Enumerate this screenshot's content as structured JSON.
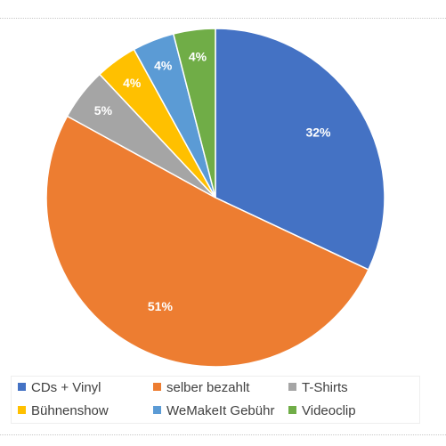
{
  "chart_data": {
    "type": "pie",
    "slices": [
      {
        "label": "CDs + Vinyl",
        "value": 32,
        "data_label": "32%",
        "color": "#4472C4"
      },
      {
        "label": "selber bezahlt",
        "value": 51,
        "data_label": "51%",
        "color": "#ED7D31"
      },
      {
        "label": "T-Shirts",
        "value": 5,
        "data_label": "5%",
        "color": "#A5A5A5"
      },
      {
        "label": "Bühnenshow",
        "value": 4,
        "data_label": "4%",
        "color": "#FFC000"
      },
      {
        "label": "WeMakeIt Gebühr",
        "value": 4,
        "data_label": "4%",
        "color": "#5B9BD5"
      },
      {
        "label": "Videoclip",
        "value": 4,
        "data_label": "4%",
        "color": "#70AD47"
      }
    ],
    "legend_position": "bottom"
  }
}
